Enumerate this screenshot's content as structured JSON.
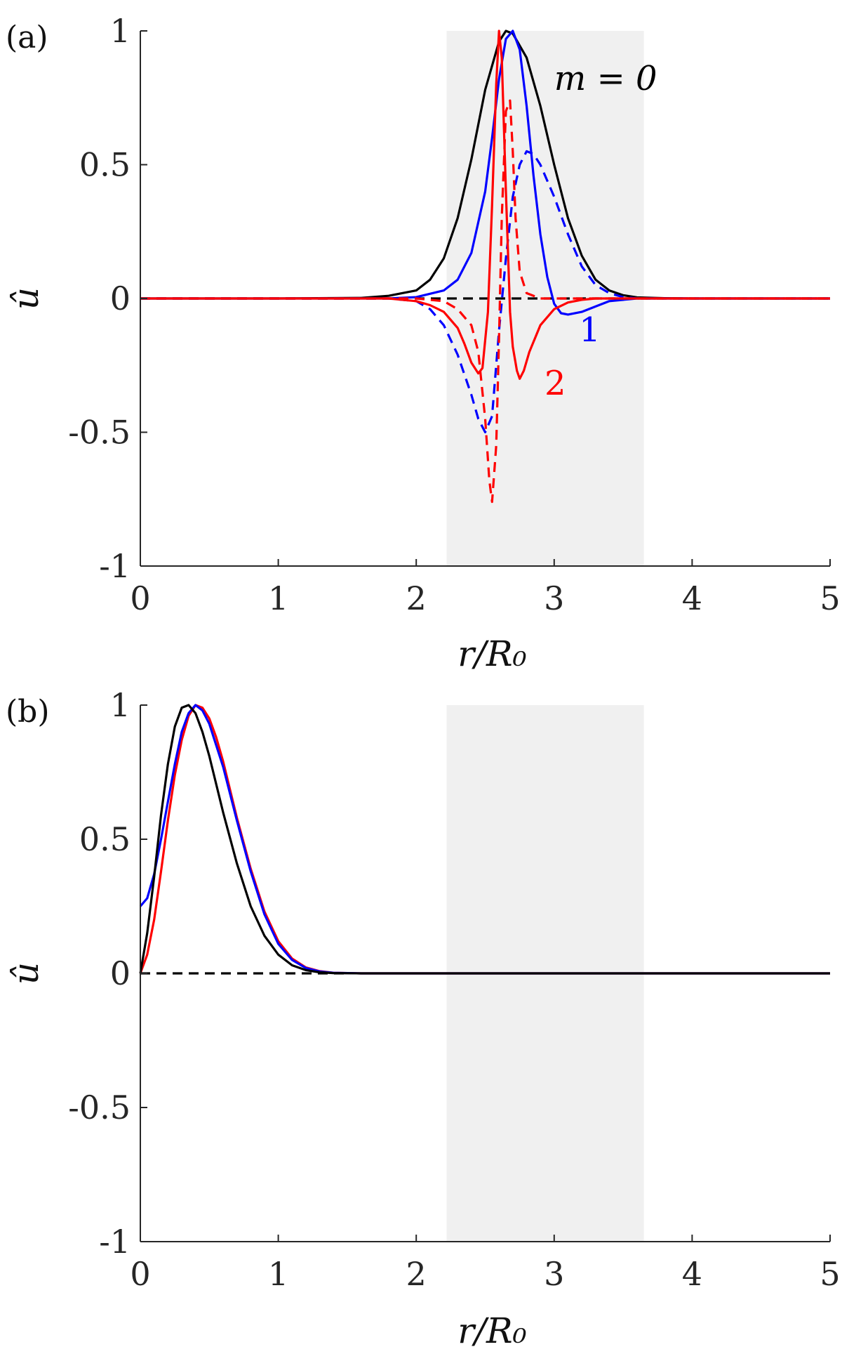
{
  "chart_data": [
    {
      "type": "line",
      "panel_label": "(a)",
      "xlabel": "r/R₀",
      "ylabel": "û",
      "xlim": [
        0,
        5
      ],
      "ylim": [
        -1,
        1
      ],
      "xticks": [
        "0",
        "1",
        "2",
        "3",
        "4",
        "5"
      ],
      "yticks": [
        "-1",
        "-0.5",
        "0",
        "0.5",
        "1"
      ],
      "grid": false,
      "shaded_region": [
        2.22,
        3.65
      ],
      "annotations": [
        {
          "text": "m = 0",
          "x": 3.0,
          "y": 0.78,
          "color": "#000000"
        },
        {
          "text": "1",
          "x": 3.18,
          "y": -0.16,
          "color": "#0000ff"
        },
        {
          "text": "2",
          "x": 2.93,
          "y": -0.36,
          "color": "#ff0000"
        }
      ],
      "series": [
        {
          "style": "solid",
          "color": "#000000",
          "m": 0,
          "x": [
            0,
            1.0,
            1.6,
            1.8,
            2.0,
            2.1,
            2.2,
            2.3,
            2.4,
            2.5,
            2.6,
            2.65,
            2.7,
            2.8,
            2.9,
            3.0,
            3.1,
            3.2,
            3.3,
            3.4,
            3.5,
            3.6,
            3.8,
            4.0,
            5.0
          ],
          "y": [
            0,
            0,
            0.002,
            0.01,
            0.03,
            0.07,
            0.15,
            0.3,
            0.52,
            0.78,
            0.96,
            1.0,
            0.99,
            0.9,
            0.72,
            0.5,
            0.3,
            0.16,
            0.07,
            0.03,
            0.012,
            0.004,
            0.001,
            0,
            0
          ]
        },
        {
          "style": "dashed",
          "color": "#000000",
          "m": 0,
          "x": [
            0,
            5
          ],
          "y": [
            0,
            0
          ]
        },
        {
          "style": "solid",
          "color": "#0000ff",
          "m": 1,
          "x": [
            0,
            1.8,
            2.0,
            2.2,
            2.3,
            2.4,
            2.5,
            2.55,
            2.6,
            2.65,
            2.7,
            2.75,
            2.8,
            2.85,
            2.9,
            2.95,
            3.0,
            3.05,
            3.1,
            3.2,
            3.3,
            3.4,
            3.6,
            5.0
          ],
          "y": [
            0,
            0,
            0.005,
            0.03,
            0.07,
            0.17,
            0.4,
            0.6,
            0.82,
            0.97,
            1.0,
            0.93,
            0.72,
            0.46,
            0.24,
            0.08,
            -0.02,
            -0.055,
            -0.06,
            -0.05,
            -0.03,
            -0.01,
            0,
            0
          ]
        },
        {
          "style": "dashed",
          "color": "#0000ff",
          "m": 1,
          "x": [
            0,
            1.8,
            2.0,
            2.1,
            2.2,
            2.3,
            2.4,
            2.45,
            2.5,
            2.55,
            2.6,
            2.65,
            2.7,
            2.75,
            2.8,
            2.85,
            2.9,
            3.0,
            3.1,
            3.2,
            3.3,
            3.4,
            3.5,
            3.6,
            5.0
          ],
          "y": [
            0,
            0,
            -0.01,
            -0.04,
            -0.1,
            -0.21,
            -0.36,
            -0.45,
            -0.5,
            -0.44,
            -0.12,
            0.15,
            0.38,
            0.5,
            0.55,
            0.54,
            0.5,
            0.38,
            0.24,
            0.12,
            0.05,
            0.02,
            0.005,
            0,
            0
          ]
        },
        {
          "style": "solid",
          "color": "#ff0000",
          "m": 2,
          "x": [
            0,
            1.8,
            2.0,
            2.1,
            2.2,
            2.3,
            2.35,
            2.4,
            2.45,
            2.48,
            2.52,
            2.55,
            2.58,
            2.6,
            2.62,
            2.65,
            2.68,
            2.7,
            2.73,
            2.75,
            2.78,
            2.82,
            2.9,
            3.0,
            3.1,
            3.2,
            3.3,
            3.5,
            5.0
          ],
          "y": [
            0,
            0,
            -0.01,
            -0.025,
            -0.05,
            -0.11,
            -0.17,
            -0.24,
            -0.28,
            -0.26,
            -0.05,
            0.35,
            0.8,
            1.0,
            0.9,
            0.4,
            -0.05,
            -0.18,
            -0.27,
            -0.3,
            -0.27,
            -0.2,
            -0.1,
            -0.04,
            -0.015,
            -0.005,
            0,
            0,
            0
          ]
        },
        {
          "style": "dashed",
          "color": "#ff0000",
          "m": 2,
          "x": [
            0,
            1.8,
            2.0,
            2.1,
            2.2,
            2.3,
            2.4,
            2.45,
            2.5,
            2.53,
            2.55,
            2.58,
            2.6,
            2.62,
            2.65,
            2.68,
            2.7,
            2.72,
            2.75,
            2.8,
            2.9,
            3.0,
            3.2,
            5.0
          ],
          "y": [
            0,
            0,
            0,
            -0.005,
            -0.01,
            -0.04,
            -0.1,
            -0.2,
            -0.45,
            -0.68,
            -0.76,
            -0.55,
            -0.15,
            0.3,
            0.7,
            0.74,
            0.55,
            0.3,
            0.1,
            0.02,
            0,
            0,
            0,
            0
          ]
        }
      ]
    },
    {
      "type": "line",
      "panel_label": "(b)",
      "xlabel": "r/R₀",
      "ylabel": "û",
      "xlim": [
        0,
        5
      ],
      "ylim": [
        -1,
        1
      ],
      "xticks": [
        "0",
        "1",
        "2",
        "3",
        "4",
        "5"
      ],
      "yticks": [
        "-1",
        "-0.5",
        "0",
        "0.5",
        "1"
      ],
      "grid": false,
      "shaded_region": [
        2.22,
        3.65
      ],
      "annotations": [],
      "series": [
        {
          "style": "solid",
          "color": "#ff0000",
          "m": 2,
          "x": [
            0,
            0.05,
            0.1,
            0.15,
            0.2,
            0.25,
            0.3,
            0.35,
            0.4,
            0.45,
            0.5,
            0.55,
            0.6,
            0.7,
            0.8,
            0.9,
            1.0,
            1.1,
            1.2,
            1.3,
            1.4,
            1.6,
            5.0
          ],
          "y": [
            0,
            0.07,
            0.2,
            0.38,
            0.57,
            0.74,
            0.87,
            0.96,
            1.0,
            0.99,
            0.95,
            0.88,
            0.79,
            0.58,
            0.39,
            0.23,
            0.12,
            0.055,
            0.022,
            0.008,
            0.002,
            0,
            0
          ]
        },
        {
          "style": "solid",
          "color": "#0000ff",
          "m": 1,
          "x": [
            0,
            0.05,
            0.1,
            0.15,
            0.2,
            0.25,
            0.3,
            0.35,
            0.4,
            0.45,
            0.5,
            0.6,
            0.7,
            0.8,
            0.9,
            1.0,
            1.1,
            1.2,
            1.3,
            1.4,
            1.6,
            5.0
          ],
          "y": [
            0.25,
            0.28,
            0.37,
            0.5,
            0.64,
            0.78,
            0.9,
            0.97,
            1.0,
            0.98,
            0.93,
            0.77,
            0.57,
            0.38,
            0.22,
            0.11,
            0.05,
            0.02,
            0.007,
            0.002,
            0,
            0
          ]
        },
        {
          "style": "solid",
          "color": "#000000",
          "m": 0,
          "x": [
            0,
            0.05,
            0.1,
            0.15,
            0.2,
            0.25,
            0.3,
            0.35,
            0.4,
            0.45,
            0.5,
            0.6,
            0.7,
            0.8,
            0.9,
            1.0,
            1.1,
            1.2,
            1.3,
            1.4,
            1.6,
            5.0
          ],
          "y": [
            0,
            0.15,
            0.36,
            0.59,
            0.78,
            0.92,
            0.99,
            1.0,
            0.97,
            0.9,
            0.81,
            0.6,
            0.41,
            0.25,
            0.14,
            0.07,
            0.03,
            0.012,
            0.004,
            0.001,
            0,
            0
          ]
        },
        {
          "style": "dashed",
          "color": "#000000",
          "m": 0,
          "x": [
            0,
            1.5
          ],
          "y": [
            0,
            0
          ]
        }
      ]
    }
  ]
}
